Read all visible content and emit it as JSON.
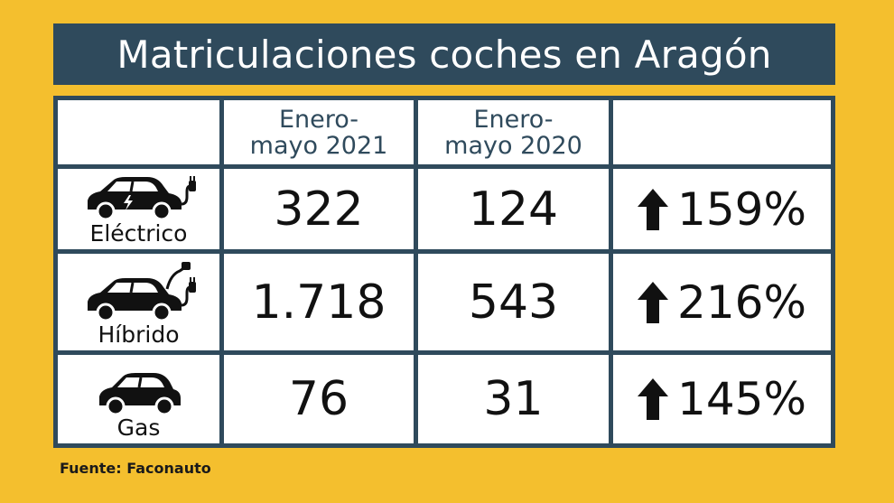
{
  "title": "Matriculaciones coches en Aragón",
  "table": {
    "headers": [
      "",
      "Enero-\nmayo 2021",
      "Enero-\nmayo 2020",
      ""
    ],
    "header_lines": [
      [
        "Enero-",
        "mayo 2021"
      ],
      [
        "Enero-",
        "mayo 2020"
      ]
    ],
    "rows": [
      {
        "category": "Eléctrico",
        "icon": "electric-car-icon",
        "y2021": "322",
        "y2020": "124",
        "change": "159%",
        "trend": "up"
      },
      {
        "category": "Híbrido",
        "icon": "hybrid-car-icon",
        "y2021": "1.718",
        "y2020": "543",
        "change": "216%",
        "trend": "up"
      },
      {
        "category": "Gas",
        "icon": "gas-car-icon",
        "y2021": "76",
        "y2020": "31",
        "change": "145%",
        "trend": "up"
      }
    ]
  },
  "source": "Fuente: Faconauto",
  "colors": {
    "background": "#f4bf2e",
    "accent": "#2f4a5c",
    "cell": "#ffffff",
    "text": "#111111"
  }
}
